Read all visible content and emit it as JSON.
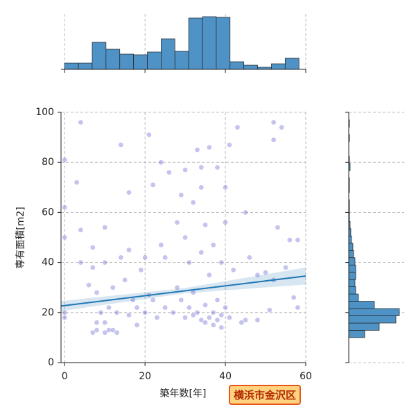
{
  "chart_data": [
    {
      "type": "scatter",
      "x_label": "築年数[年]",
      "y_label": "専有面積[m2]",
      "xlim": [
        -0.9,
        60
      ],
      "ylim": [
        0,
        100
      ],
      "xticks": [
        0,
        20,
        40,
        60
      ],
      "yticks": [
        0,
        20,
        40,
        60,
        80,
        100
      ],
      "grid": true,
      "series": [
        {
          "color": "#3a3ac8",
          "x": [
            0,
            0,
            0,
            0,
            0,
            4,
            3,
            4,
            4,
            6,
            7,
            7,
            7,
            8,
            8,
            8,
            9,
            10,
            10,
            10,
            10,
            11,
            11,
            12,
            12,
            13,
            13,
            14,
            14,
            15,
            16,
            16,
            16,
            17,
            18,
            18,
            19,
            20,
            20,
            21,
            21,
            22,
            22,
            23,
            24,
            24,
            25,
            25,
            26,
            27,
            28,
            28,
            29,
            29,
            30,
            30,
            30,
            31,
            31,
            32,
            32,
            32,
            33,
            33,
            34,
            34,
            34,
            34,
            35,
            35,
            35,
            36,
            36,
            36,
            37,
            37,
            37,
            38,
            38,
            38,
            39,
            39,
            39,
            40,
            40,
            40,
            41,
            41,
            42,
            43,
            44,
            45,
            45,
            46,
            48,
            48,
            50,
            51,
            52,
            52,
            52,
            53,
            54,
            55,
            56,
            57,
            58,
            58
          ],
          "y": [
            20,
            18,
            50,
            62,
            81,
            96,
            72,
            40,
            53,
            31,
            38,
            46,
            12,
            13,
            16,
            28,
            20,
            12,
            16,
            54,
            40,
            13,
            22,
            13,
            30,
            12,
            20,
            87,
            42,
            33,
            68,
            45,
            19,
            25,
            22,
            15,
            37,
            20,
            42,
            91,
            27,
            71,
            25,
            18,
            80,
            47,
            22,
            42,
            76,
            20,
            56,
            30,
            67,
            25,
            77,
            18,
            50,
            22,
            40,
            64,
            19,
            28,
            85,
            20,
            78,
            17,
            70,
            44,
            16,
            23,
            55,
            18,
            35,
            86,
            20,
            15,
            47,
            17,
            25,
            78,
            19,
            14,
            40,
            70,
            22,
            56,
            18,
            87,
            37,
            94,
            16,
            60,
            17,
            42,
            35,
            17,
            36,
            21,
            96,
            89,
            33,
            54,
            94,
            38,
            49,
            26,
            49,
            22
          ]
        }
      ],
      "regression": {
        "color": "#1f77b4",
        "x": [
          -0.9,
          30,
          60
        ],
        "y": [
          22.6,
          28.7,
          34.6
        ],
        "lower": [
          20.6,
          27.7,
          31.2
        ],
        "upper": [
          24.6,
          29.8,
          38.0
        ]
      },
      "badge": "横浜市金沢区"
    },
    {
      "type": "histogram",
      "orientation": "vertical",
      "color": "#4e92c6",
      "bins": [
        0,
        3.43,
        6.86,
        10.29,
        13.72,
        17.15,
        20.58,
        24.01,
        27.44,
        30.87,
        34.3,
        37.73,
        41.16,
        44.59,
        48.02,
        51.45,
        54.88,
        58.31
      ],
      "counts": [
        9,
        9,
        39,
        29,
        22,
        21,
        25,
        44,
        26,
        74,
        76,
        75,
        11,
        6,
        3,
        8,
        16
      ],
      "countlim": [
        0,
        80
      ]
    },
    {
      "type": "histogram",
      "orientation": "horizontal",
      "color": "#4e92c6",
      "bins": [
        10,
        12.9,
        15.8,
        18.7,
        21.6,
        24.5,
        27.4,
        30.3,
        33.2,
        36.1,
        39,
        41.9,
        44.8,
        47.7,
        50.6,
        53.5,
        56.4,
        59.3,
        62.2,
        65.1,
        68,
        70.9,
        73.8,
        76.7,
        79.6,
        82.5,
        85.4,
        88.3,
        91.2,
        94.1,
        97
      ],
      "counts": [
        23,
        44,
        68,
        73,
        37,
        14,
        10,
        9,
        10,
        10,
        9,
        7,
        6,
        4,
        3,
        2,
        1,
        1,
        1,
        0,
        1,
        1,
        0,
        2,
        1,
        0,
        0,
        1,
        0,
        1
      ],
      "countlim": [
        0,
        80
      ]
    }
  ]
}
